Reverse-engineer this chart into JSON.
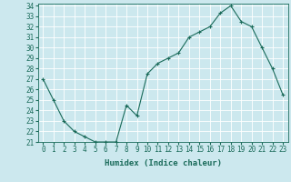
{
  "x": [
    0,
    1,
    2,
    3,
    4,
    5,
    6,
    7,
    8,
    9,
    10,
    11,
    12,
    13,
    14,
    15,
    16,
    17,
    18,
    19,
    20,
    21,
    22,
    23
  ],
  "y": [
    27,
    25,
    23,
    22,
    21.5,
    21,
    21,
    21,
    24.5,
    23.5,
    27.5,
    28.5,
    29,
    29.5,
    31,
    31.5,
    32,
    33.3,
    34,
    32.5,
    32,
    30,
    28,
    25.5
  ],
  "title": "",
  "xlabel": "Humidex (Indice chaleur)",
  "ylim": [
    21,
    34.2
  ],
  "xlim": [
    -0.5,
    23.5
  ],
  "yticks": [
    21,
    22,
    23,
    24,
    25,
    26,
    27,
    28,
    29,
    30,
    31,
    32,
    33,
    34
  ],
  "xticks": [
    0,
    1,
    2,
    3,
    4,
    5,
    6,
    7,
    8,
    9,
    10,
    11,
    12,
    13,
    14,
    15,
    16,
    17,
    18,
    19,
    20,
    21,
    22,
    23
  ],
  "line_color": "#1a6b5a",
  "bg_color": "#cce8ee",
  "grid_color": "#ffffff",
  "marker": "+",
  "tick_fontsize": 5.5,
  "xlabel_fontsize": 6.5
}
